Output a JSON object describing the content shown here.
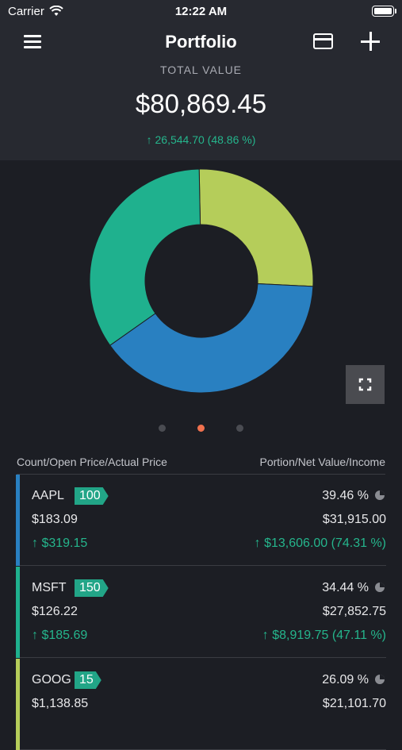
{
  "status": {
    "carrier": "Carrier",
    "time": "12:22 AM"
  },
  "header": {
    "title": "Portfolio",
    "total_label": "TOTAL VALUE",
    "total_value": "$80,869.45",
    "total_change": "↑ 26,544.70 (48.86 %)"
  },
  "chart_data": {
    "type": "pie",
    "categories": [
      "AAPL",
      "MSFT",
      "GOOG"
    ],
    "values": [
      39.46,
      34.44,
      26.09
    ],
    "colors": [
      "#2980c1",
      "#1fb18e",
      "#b5cd5a"
    ]
  },
  "pager": {
    "pages": 3,
    "active": 2
  },
  "list": {
    "left_header": "Count/Open Price/Actual Price",
    "right_header": "Portion/Net Value/Income",
    "rows": [
      {
        "symbol": "AAPL",
        "count": "100",
        "open_price": "$183.09",
        "price_change": "↑ $319.15",
        "portion": "39.46 %",
        "net_value": "$31,915.00",
        "income": "↑ $13,606.00 (74.31 %)",
        "color": "#2980c1"
      },
      {
        "symbol": "MSFT",
        "count": "150",
        "open_price": "$126.22",
        "price_change": "↑ $185.69",
        "portion": "34.44 %",
        "net_value": "$27,852.75",
        "income": "↑ $8,919.75 (47.11 %)",
        "color": "#1fb18e"
      },
      {
        "symbol": "GOOG",
        "count": "15",
        "open_price": "$1,138.85",
        "price_change": "",
        "portion": "26.09 %",
        "net_value": "$21,101.70",
        "income": "",
        "color": "#b5cd5a"
      }
    ]
  }
}
